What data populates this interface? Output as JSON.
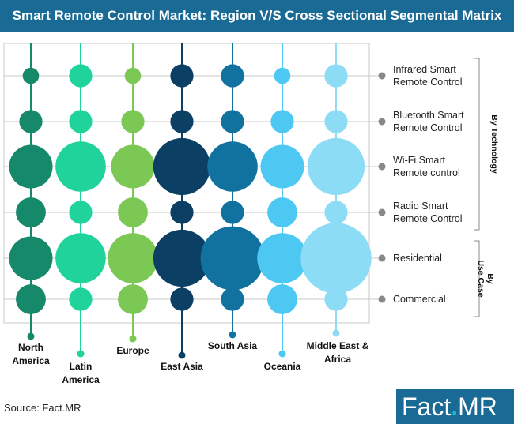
{
  "title": "Smart Remote Control Market: Region V/S Cross Sectional Segmental Matrix",
  "source": "Source: Fact.MR",
  "logo": {
    "part1": "Fact",
    "dot": ".",
    "part2": "MR"
  },
  "colors": {
    "title_bg": "#1a6a96",
    "grid": "#c8c8c8",
    "region_colors": [
      "#16896a",
      "#1fd39a",
      "#7bc855",
      "#0b3f63",
      "#12729f",
      "#4cc8f2",
      "#8ddcf6"
    ]
  },
  "chart_data": {
    "type": "bubble matrix",
    "title": "Smart Remote Control Market: Region V/S Cross Sectional Segmental Matrix",
    "columns": [
      "North America",
      "Latin America",
      "Europe",
      "East Asia",
      "South Asia",
      "Oceania",
      "Middle East & Africa"
    ],
    "column_labels": [
      [
        "North",
        "America"
      ],
      [
        "Latin",
        "America"
      ],
      [
        "Europe"
      ],
      [
        "East Asia"
      ],
      [
        "South Asia"
      ],
      [
        "Oceania"
      ],
      [
        "Middle East &",
        "Africa"
      ]
    ],
    "rows": [
      {
        "label": [
          "Infrared Smart",
          "Remote Control"
        ],
        "sizes": [
          1,
          2,
          1,
          2,
          2,
          1,
          2
        ]
      },
      {
        "label": [
          "Bluetooth Smart",
          "Remote Control"
        ],
        "sizes": [
          2,
          2,
          2,
          2,
          2,
          2,
          2
        ]
      },
      {
        "label": [
          "Wi-Fi Smart",
          "Remote control"
        ],
        "sizes": [
          5,
          6,
          5,
          7,
          6,
          5,
          7
        ]
      },
      {
        "label": [
          "Radio Smart",
          "Remote Control"
        ],
        "sizes": [
          3,
          2,
          3,
          2,
          2,
          3,
          2
        ]
      },
      {
        "label": [
          "Residential"
        ],
        "sizes": [
          5,
          6,
          6,
          7,
          8,
          6,
          9
        ]
      },
      {
        "label": [
          "Commercial"
        ],
        "sizes": [
          3,
          2,
          3,
          2,
          2,
          3,
          2
        ]
      }
    ],
    "groups": [
      {
        "label": [
          "By Technology"
        ],
        "rows": [
          0,
          3
        ]
      },
      {
        "label": [
          "By",
          "Use Case"
        ],
        "rows": [
          4,
          5
        ]
      }
    ],
    "grid": true
  }
}
